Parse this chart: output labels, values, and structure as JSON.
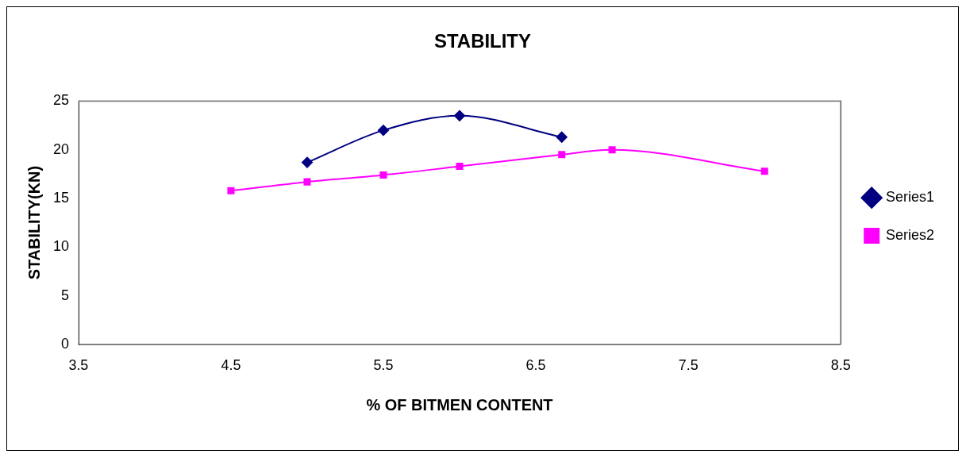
{
  "chart_data": {
    "type": "line",
    "title": "STABILITY",
    "xlabel": "% OF BITMEN CONTENT",
    "ylabel": "STABILITY(KN)",
    "series": [
      {
        "name": "Series1",
        "color": "#000080",
        "marker": "diamond",
        "x": [
          5,
          5.5,
          6,
          6.67
        ],
        "values": [
          18.7,
          22.0,
          23.5,
          21.3
        ]
      },
      {
        "name": "Series2",
        "color": "#ff00ff",
        "marker": "square",
        "x": [
          4.5,
          5,
          5.5,
          6,
          6.67,
          7,
          8
        ],
        "values": [
          15.8,
          16.7,
          17.4,
          18.3,
          19.5,
          20.0,
          17.8
        ]
      }
    ],
    "xlim": [
      3.5,
      8.5
    ],
    "xticks": [
      3.5,
      4.5,
      5.5,
      6.5,
      7.5,
      8.5
    ],
    "ylim": [
      0,
      25
    ],
    "yticks": [
      0,
      5,
      10,
      15,
      20,
      25
    ],
    "grid": false,
    "legend": "right"
  }
}
